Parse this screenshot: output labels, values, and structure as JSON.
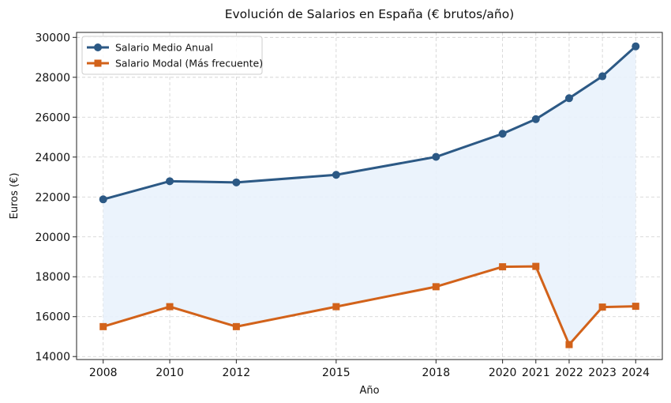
{
  "chart_data": {
    "type": "line",
    "title": "Evolución de Salarios en España (€ brutos/año)",
    "xlabel": "Año",
    "ylabel": "Euros (€)",
    "x": [
      2008,
      2010,
      2012,
      2015,
      2018,
      2020,
      2021,
      2022,
      2023,
      2024
    ],
    "x_tick_labels": [
      "2008",
      "2010",
      "2012",
      "2015",
      "2018",
      "2020",
      "2021",
      "2022",
      "2023",
      "2024"
    ],
    "y_ticks": [
      14000,
      16000,
      18000,
      20000,
      22000,
      24000,
      26000,
      28000,
      30000
    ],
    "y_tick_labels": [
      "14000",
      "16000",
      "18000",
      "20000",
      "22000",
      "24000",
      "26000",
      "28000",
      "30000"
    ],
    "xlim": [
      2007.2,
      2024.8
    ],
    "ylim": [
      13850,
      30250
    ],
    "grid": true,
    "legend_position": "top-left",
    "fill_between_series": true,
    "fill_color": "#e9f2fc",
    "series": [
      {
        "name": "Salario Medio Anual",
        "color": "#2c5985",
        "marker": "circle",
        "values": [
          21880,
          22790,
          22730,
          23110,
          24010,
          25170,
          25900,
          26950,
          28050,
          29550
        ]
      },
      {
        "name": "Salario Modal (Más frecuente)",
        "color": "#d2621a",
        "marker": "square",
        "values": [
          15500,
          16500,
          15500,
          16500,
          17500,
          18500,
          18520,
          14600,
          16480,
          16520
        ]
      }
    ]
  }
}
